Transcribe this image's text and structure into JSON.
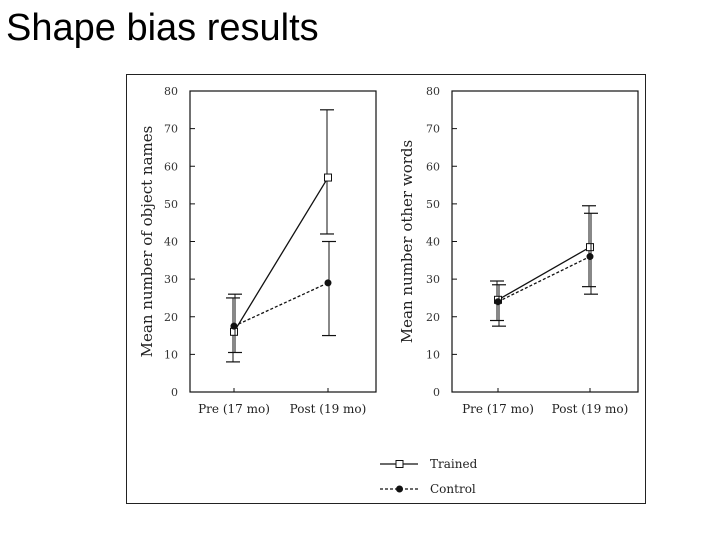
{
  "slide": {
    "title": "Shape bias results"
  },
  "chart_data": [
    {
      "type": "line",
      "title": "",
      "ylabel": "Mean number of object names",
      "xlabel": "",
      "categories": [
        "Pre (17 mo)",
        "Post (19 mo)"
      ],
      "ylim": [
        0,
        80
      ],
      "yticks": [
        0,
        10,
        20,
        30,
        40,
        50,
        60,
        70,
        80
      ],
      "series": [
        {
          "name": "Trained",
          "values": [
            16,
            57
          ],
          "error": [
            [
              8,
              25
            ],
            [
              42,
              75
            ]
          ],
          "marker": "square",
          "style": "solid"
        },
        {
          "name": "Control",
          "values": [
            17.5,
            29
          ],
          "error": [
            [
              10.5,
              26
            ],
            [
              15,
              40
            ]
          ],
          "marker": "circle",
          "style": "dashed"
        }
      ]
    },
    {
      "type": "line",
      "title": "",
      "ylabel": "Mean number other words",
      "xlabel": "",
      "categories": [
        "Pre (17 mo)",
        "Post (19 mo)"
      ],
      "ylim": [
        0,
        80
      ],
      "yticks": [
        0,
        10,
        20,
        30,
        40,
        50,
        60,
        70,
        80
      ],
      "series": [
        {
          "name": "Trained",
          "values": [
            24.5,
            38.5
          ],
          "error": [
            [
              19,
              29.5
            ],
            [
              28,
              49.5
            ]
          ],
          "marker": "square",
          "style": "solid"
        },
        {
          "name": "Control",
          "values": [
            24,
            36
          ],
          "error": [
            [
              17.5,
              28.5
            ],
            [
              26,
              47.5
            ]
          ],
          "marker": "circle",
          "style": "dashed"
        }
      ]
    }
  ],
  "legend": {
    "items": [
      {
        "label": "Trained",
        "marker": "square",
        "style": "solid"
      },
      {
        "label": "Control",
        "marker": "circle",
        "style": "dashed"
      }
    ]
  }
}
